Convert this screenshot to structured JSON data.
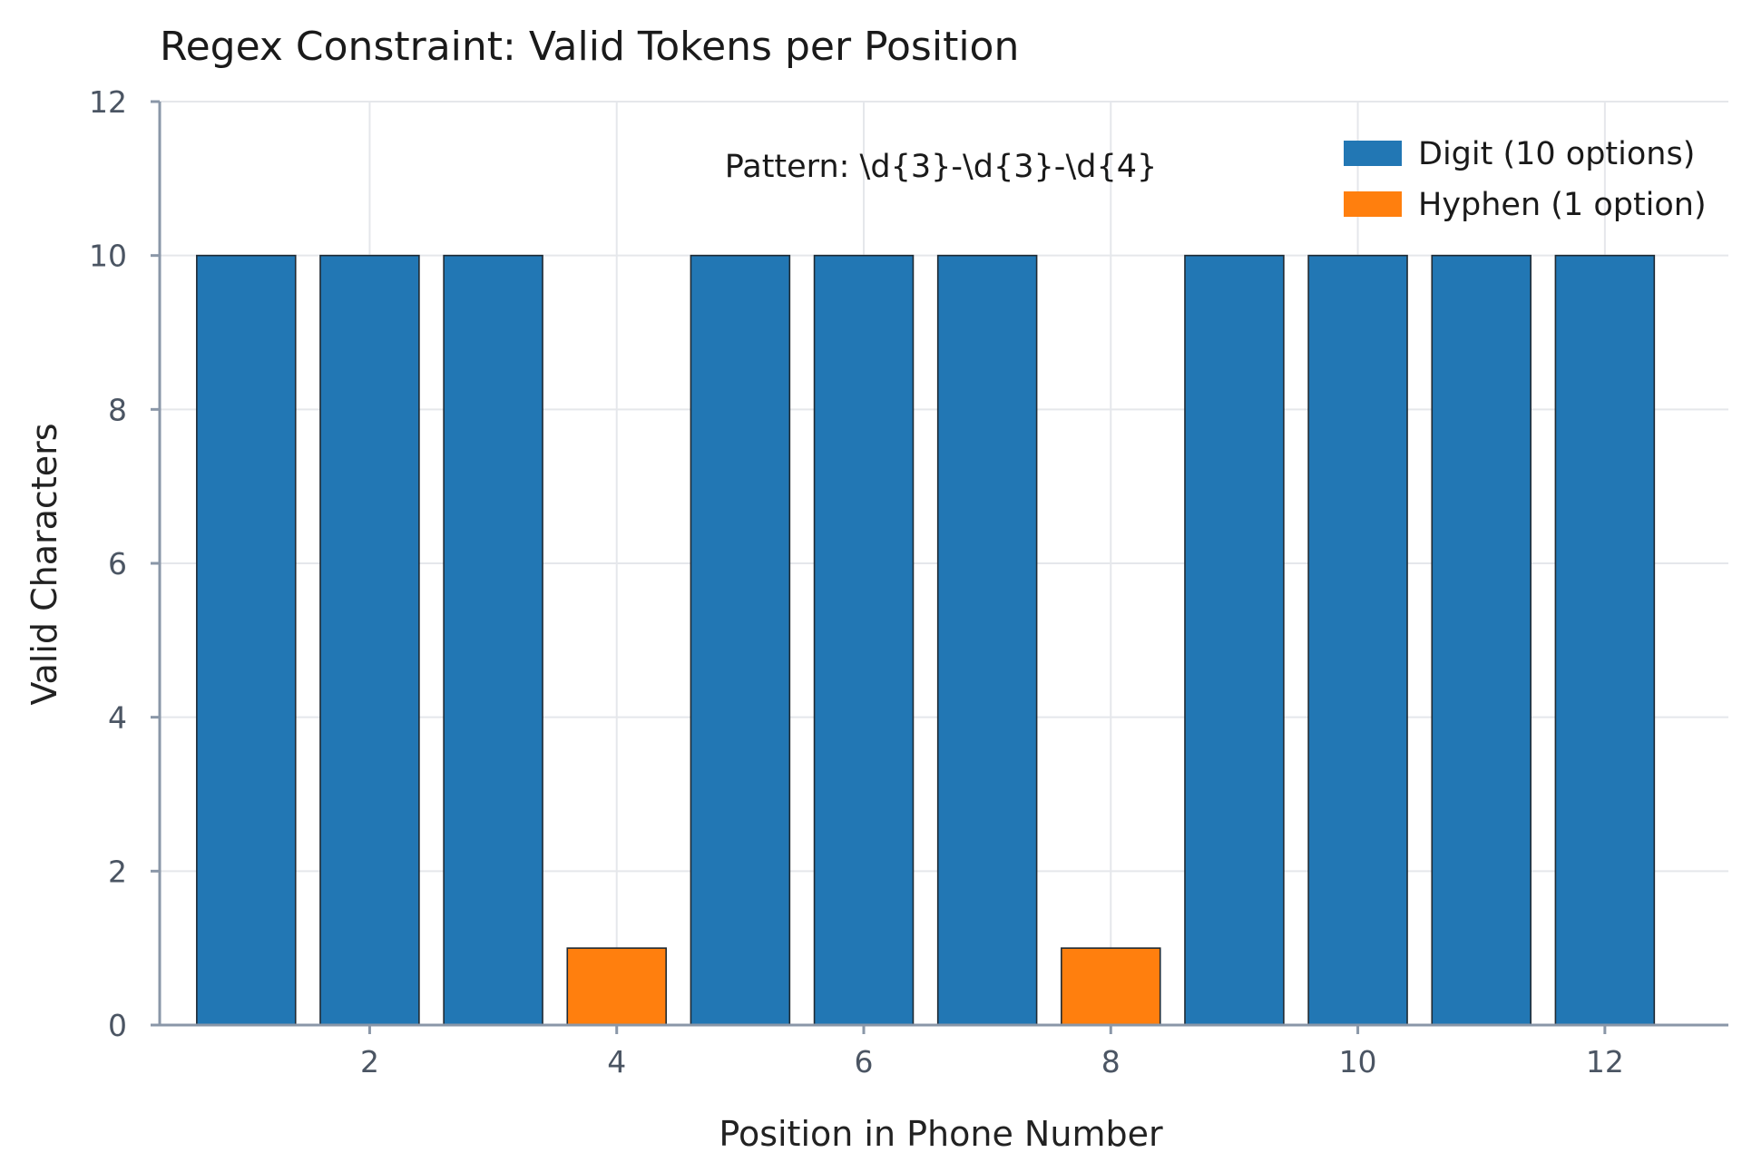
{
  "chart_data": {
    "type": "bar",
    "title": "Regex Constraint: Valid Tokens per Position",
    "xlabel": "Position in Phone Number",
    "ylabel": "Valid Characters",
    "annotation": "Pattern: \\d{3}-\\d{3}-\\d{4}",
    "x": [
      1,
      2,
      3,
      4,
      5,
      6,
      7,
      8,
      9,
      10,
      11,
      12
    ],
    "values": [
      10,
      10,
      10,
      1,
      10,
      10,
      10,
      1,
      10,
      10,
      10,
      10
    ],
    "bar_series": [
      "digit",
      "digit",
      "digit",
      "hyphen",
      "digit",
      "digit",
      "digit",
      "hyphen",
      "digit",
      "digit",
      "digit",
      "digit"
    ],
    "series": [
      {
        "key": "digit",
        "name": "Digit (10 options)",
        "color": "#2277b4"
      },
      {
        "key": "hyphen",
        "name": "Hyphen (1 option)",
        "color": "#ff7f0e"
      }
    ],
    "xticks": [
      2,
      4,
      6,
      8,
      10,
      12
    ],
    "yticks": [
      0,
      2,
      4,
      6,
      8,
      10,
      12
    ],
    "xlim": [
      0.3,
      13.0
    ],
    "ylim": [
      0,
      12
    ],
    "grid": true,
    "legend_position": "top-right"
  }
}
